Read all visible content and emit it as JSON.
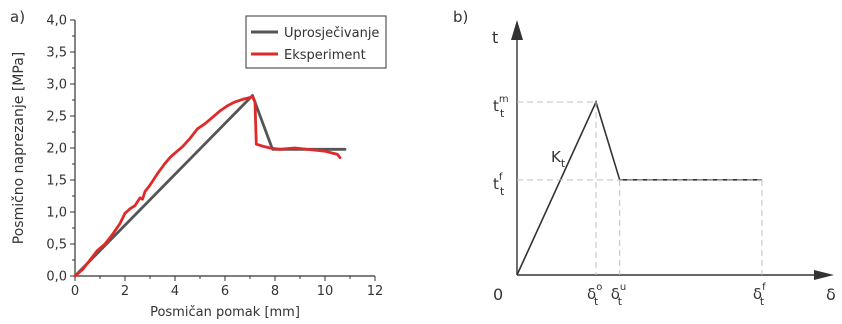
{
  "panels": {
    "left_label": "a)",
    "right_label": "b)"
  },
  "colors": {
    "model_series": "#555555",
    "experiment_series": "#e02a2a",
    "axis": "#333333",
    "guide": "#c0c0c0"
  },
  "chart_data": [
    {
      "type": "line",
      "xlabel": "Posmičan pomak [mm]",
      "ylabel": "Posmično naprezanje [MPa]",
      "xlim": [
        0,
        12
      ],
      "ylim": [
        0,
        4.0
      ],
      "x_ticks": [
        "0",
        "2",
        "4",
        "6",
        "8",
        "10",
        "12"
      ],
      "y_ticks": [
        "0,0",
        "0,5",
        "1,0",
        "1,5",
        "2,0",
        "2,5",
        "3,0",
        "3,5",
        "4,0"
      ],
      "legend_placement": "top-right",
      "grid": false,
      "series": [
        {
          "name": "Uprosječivanje",
          "x": [
            0,
            7.1,
            7.9,
            10.8
          ],
          "y": [
            0,
            2.82,
            1.98,
            1.98
          ]
        },
        {
          "name": "Eksperiment",
          "x": [
            0,
            0.3,
            0.6,
            0.9,
            1.2,
            1.5,
            1.8,
            2.0,
            2.2,
            2.4,
            2.6,
            2.7,
            2.8,
            3.0,
            3.3,
            3.6,
            3.8,
            4.0,
            4.3,
            4.6,
            4.9,
            5.2,
            5.5,
            5.8,
            6.1,
            6.4,
            6.7,
            6.9,
            7.1,
            7.2,
            7.25,
            7.5,
            7.8,
            8.2,
            8.8,
            9.5,
            10.0,
            10.3,
            10.5,
            10.6
          ],
          "y": [
            0,
            0.1,
            0.25,
            0.4,
            0.5,
            0.65,
            0.82,
            0.98,
            1.05,
            1.1,
            1.22,
            1.2,
            1.32,
            1.42,
            1.6,
            1.76,
            1.85,
            1.92,
            2.02,
            2.15,
            2.3,
            2.38,
            2.48,
            2.58,
            2.66,
            2.72,
            2.76,
            2.78,
            2.8,
            2.72,
            2.06,
            2.03,
            2.0,
            1.98,
            2.0,
            1.97,
            1.95,
            1.92,
            1.9,
            1.85
          ]
        }
      ]
    },
    {
      "type": "line",
      "xlabel": "δ",
      "ylabel": "t",
      "origin_label": "0",
      "grid": false,
      "series": [
        {
          "x": [
            0,
            1.0,
            1.3,
            3.1
          ],
          "y": [
            0,
            1.0,
            0.55,
            0.55
          ]
        }
      ],
      "annotations": {
        "k_label": "K",
        "k_sub": "t",
        "y_marks": [
          {
            "main": "t",
            "sup": "m",
            "sub": "t",
            "level": 1.0
          },
          {
            "main": "t",
            "sup": "f",
            "sub": "t",
            "level": 0.55
          }
        ],
        "x_marks": [
          {
            "main": "δ",
            "sup": "o",
            "sub": "t",
            "at": 1.0
          },
          {
            "main": "δ",
            "sup": "u",
            "sub": "t",
            "at": 1.3
          },
          {
            "main": "δ",
            "sup": "f",
            "sub": "t",
            "at": 3.1
          }
        ]
      }
    }
  ]
}
